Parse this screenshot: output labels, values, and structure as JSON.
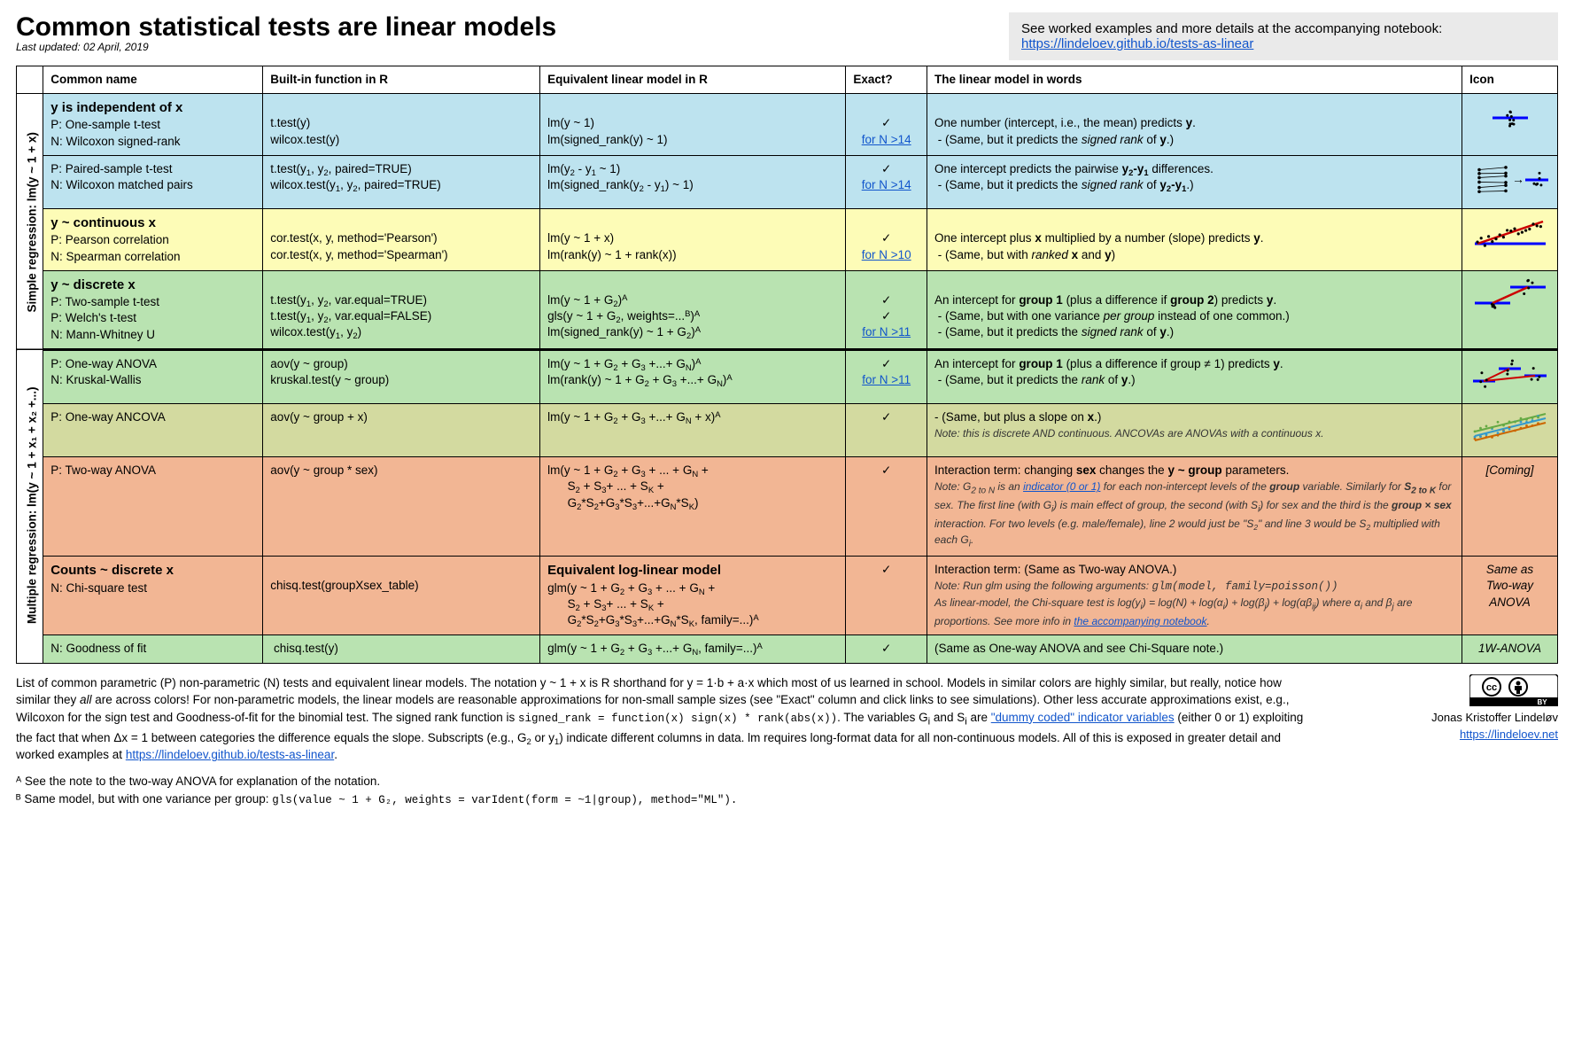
{
  "title": "Common statistical tests are linear models",
  "updated": "Last updated: 02 April, 2019",
  "note": {
    "text": "See worked examples and more details at the accompanying notebook: ",
    "link_text": "https://lindeloev.github.io/tests-as-linear",
    "link_href": "https://lindeloev.github.io/tests-as-linear"
  },
  "headers": {
    "common": "Common name",
    "r": "Built-in function in R",
    "lm": "Equivalent linear model in R",
    "exact": "Exact?",
    "words": "The linear model in words",
    "icon": "Icon"
  },
  "side_labels": {
    "simple": "Simple regression: lm(y ~ 1 + x)",
    "multiple": "Multiple regression: lm(y ~ 1 + x₁ + x₂ +...)"
  },
  "colors": {
    "blue": "#bde3ef",
    "yellow": "#fdfcb7",
    "green": "#b9e3b1",
    "olive": "#d3daa0",
    "orange": "#f2b694",
    "border": "#000000",
    "link": "#1155cc"
  },
  "rows": [
    {
      "id": "r1",
      "color": "blue",
      "head": "y is independent of x",
      "lines": [
        {
          "p": "P: One-sample t-test",
          "n": "",
          "r": "t.test(y)",
          "lm": "lm(y ~ 1)",
          "exact": "✓"
        },
        {
          "p": "N: Wilcoxon signed-rank",
          "n": "",
          "r": "wilcox.test(y)",
          "lm": "lm(signed_rank(y) ~ 1)",
          "exact": "for N >14",
          "exact_link": true
        }
      ],
      "words": "One number (intercept, i.e., the mean) predicts <b>y</b>.<br>&nbsp;- (Same, but it predicts the <i>signed rank</i> of <b>y</b>.)"
    },
    {
      "id": "r2",
      "color": "blue",
      "lines": [
        {
          "p": "P: Paired-sample t-test",
          "r": "t.test(y₁, y₂, paired=TRUE)",
          "lm": "lm(y₂ - y₁ ~ 1)",
          "exact": "✓"
        },
        {
          "p": "N: Wilcoxon matched pairs",
          "r": "wilcox.test(y₁, y₂, paired=TRUE)",
          "lm": "lm(signed_rank(y₂ - y₁) ~ 1)",
          "exact": "for N >14",
          "exact_link": true
        }
      ],
      "words": "One intercept predicts the pairwise <b>y₂-y₁</b> differences.<br>&nbsp;- (Same, but it predicts the <i>signed rank</i> of <b>y₂-y₁</b>.)"
    },
    {
      "id": "r3",
      "color": "yellow",
      "head": "y ~ continuous x",
      "lines": [
        {
          "p": "P: Pearson correlation",
          "r": "cor.test(x, y, method='Pearson')",
          "lm": "lm(y ~ 1 + x)",
          "exact": "✓"
        },
        {
          "p": "N: Spearman correlation",
          "r": "cor.test(x, y, method='Spearman')",
          "lm": "lm(rank(y) ~ 1 + rank(x))",
          "exact": "for N >10",
          "exact_link": true
        }
      ],
      "words": "One intercept plus <b>x</b> multiplied by a number (slope) predicts <b>y</b>.<br>&nbsp;- (Same, but with <i>ranked</i> <b>x</b> and <b>y</b>)"
    },
    {
      "id": "r4",
      "color": "green",
      "head": "y ~ discrete x",
      "lines": [
        {
          "p": "P: Two-sample t-test",
          "r": "t.test(y₁, y₂, var.equal=TRUE)",
          "lm": "lm(y ~ 1 + G₂)ᴬ",
          "exact": "✓"
        },
        {
          "p": "P: Welch's t-test",
          "r": "t.test(y₁, y₂, var.equal=FALSE)",
          "lm": "gls(y ~ 1 + G₂, weights=...ᴮ)ᴬ",
          "exact": "✓"
        },
        {
          "p": "N: Mann-Whitney U",
          "r": "wilcox.test(y₁, y₂)",
          "lm": "lm(signed_rank(y) ~ 1 + G₂)ᴬ",
          "exact": "for N >11",
          "exact_link": true
        }
      ],
      "words": "An intercept for <b>group 1</b> (plus a difference if <b>group 2</b>) predicts <b>y</b>.<br>&nbsp;- (Same, but with one variance <i>per group</i> instead of one common.)<br>&nbsp;- (Same, but it predicts the <i>signed rank</i> of <b>y</b>.)"
    },
    {
      "id": "r5",
      "color": "green",
      "thick": true,
      "lines": [
        {
          "p": "P: One-way ANOVA",
          "r": "aov(y ~ group)",
          "lm": "lm(y ~ 1 + G₂ + G₃ +...+ Gₙ)ᴬ",
          "exact": "✓"
        },
        {
          "p": "N: Kruskal-Wallis",
          "r": "kruskal.test(y ~ group)",
          "lm": "lm(rank(y) ~ 1 + G₂ + G₃ +...+ Gₙ)ᴬ",
          "exact": "for N >11",
          "exact_link": true
        }
      ],
      "words": "An intercept for <b>group 1</b> (plus a difference if group ≠ 1) predicts <b>y</b>.<br>&nbsp;- (Same, but it predicts the <i>rank</i> of <b>y</b>.)"
    },
    {
      "id": "r6",
      "color": "olive",
      "lines": [
        {
          "p": "P: One-way ANCOVA",
          "r": "aov(y ~ group + x)",
          "lm": "lm(y ~ 1 + G₂ + G₃ +...+ Gₙ + x)ᴬ",
          "exact": "✓"
        }
      ],
      "words": "- (Same, but plus a slope on <b>x</b>.)<br><span class=\"note-small\">Note: this is discrete AND continuous. ANCOVAs are ANOVAs with a continuous x.</span>"
    },
    {
      "id": "r7",
      "color": "orange",
      "lines": [
        {
          "p": "P: Two-way ANOVA",
          "r": "aov(y ~ group * sex)",
          "lm": "lm(y ~ 1 + G₂ + G₃ + ... + Gₙ +<br>&nbsp;&nbsp;&nbsp;&nbsp;&nbsp;&nbsp;S₂ + S₃+ ... + Sₖ +<br>&nbsp;&nbsp;&nbsp;&nbsp;&nbsp;&nbsp;G₂*S₂+G₃*S₃+...+Gₙ*Sₖ)",
          "exact": "✓"
        }
      ],
      "words": "Interaction term: changing <b>sex</b> changes the <b>y ~ group</b> parameters.<br><span class=\"note-small\">Note: G<sub>2 to N</sub> is an <a href=\"#\">indicator (0 or 1)</a> for each non-intercept levels of the <b>group</b> variable. Similarly for <b>S<sub>2 to K</sub></b> for sex. The first line (with G<sub>i</sub>) is main effect of group, the second (with S<sub>i</sub>) for sex and the third is the <b>group × sex</b> interaction. For two levels (e.g. male/female), line 2 would just be \"S₂\" and line 3 would be S₂ multiplied with each G<sub>i</sub>.</span>",
      "icon_text": "[Coming]"
    },
    {
      "id": "r8",
      "color": "orange",
      "head": "Counts ~ discrete x",
      "lm_head": "Equivalent log-linear model",
      "lines": [
        {
          "p": "N: Chi-square test",
          "r": "chisq.test(groupXsex_table)",
          "lm": "glm(y ~ 1 + G₂ + G₃ + ... + Gₙ +<br>&nbsp;&nbsp;&nbsp;&nbsp;&nbsp;&nbsp;S₂ + S₃+ ... + Sₖ +<br>&nbsp;&nbsp;&nbsp;&nbsp;&nbsp;&nbsp;G₂*S₂+G₃*S₃+...+Gₙ*Sₖ, family=...)ᴬ",
          "exact": "✓"
        }
      ],
      "words": "Interaction term: (Same as Two-way ANOVA.)<br><span class=\"note-small\">Note: Run glm using the following arguments: <span class=\"mono\">glm(model, family=poisson())</span><br>As linear-model, the Chi-square test is log(y<sub>i</sub>) = log(N) + log(α<sub>i</sub>) + log(β<sub>j</sub>) + log(αβ<sub>ij</sub>) where α<sub>i</sub> and β<sub>j</sub> are proportions. See more info in <a href=\"#\">the accompanying notebook</a>.</span>",
      "icon_text": "Same as<br>Two-way<br>ANOVA"
    },
    {
      "id": "r9",
      "color": "green",
      "lines": [
        {
          "p": "N: Goodness of fit",
          "r": "&nbsp;chisq.test(y)",
          "lm": "glm(y ~ 1 + G₂ + G₃ +...+ Gₙ, family=...)ᴬ",
          "exact": "✓"
        }
      ],
      "words": "(Same as One-way ANOVA and see Chi-Square note.)",
      "icon_text": "1W-ANOVA"
    }
  ],
  "footnote_main": "List of common parametric (P) non-parametric (N) tests and equivalent linear models. The notation y ~ 1 + x is R shorthand for y = 1·b + a·x which most of us learned in school. Models in similar colors are highly similar, but really, notice how similar they <i>all</i> are across colors! For non-parametric models, the linear models are reasonable approximations for non-small sample sizes (see \"Exact\" column and click links to see simulations). Other less accurate approximations exist, e.g., Wilcoxon for the sign test and Goodness-of-fit for the binomial test. The signed rank function is <span class=\"mono\">signed_rank = function(x) sign(x) * rank(abs(x))</span>. The variables G<sub>i</sub> and S<sub>i</sub> are <a href=\"#\">\"dummy coded\" indicator variables</a> (either 0 or 1) exploiting the fact that when Δx = 1 between categories the difference equals the slope. Subscripts (e.g., G₂ or y₁) indicate different columns in data. lm requires long-format data for all non-continuous models. All of this is exposed in greater detail and worked examples at <a href=\"https://lindeloev.github.io/tests-as-linear\">https://lindeloev.github.io/tests-as-linear</a>.",
  "footnote_A": "ᴬ See the note to the two-way ANOVA for explanation of the notation.",
  "footnote_B": "ᴮ Same model, but with one variance per group: ",
  "footnote_B_code": "gls(value ~ 1 + G₂, weights = varIdent(form = ~1|group), method=\"ML\").",
  "author": "Jonas Kristoffer Lindeløv",
  "author_link": "https://lindeloev.net"
}
